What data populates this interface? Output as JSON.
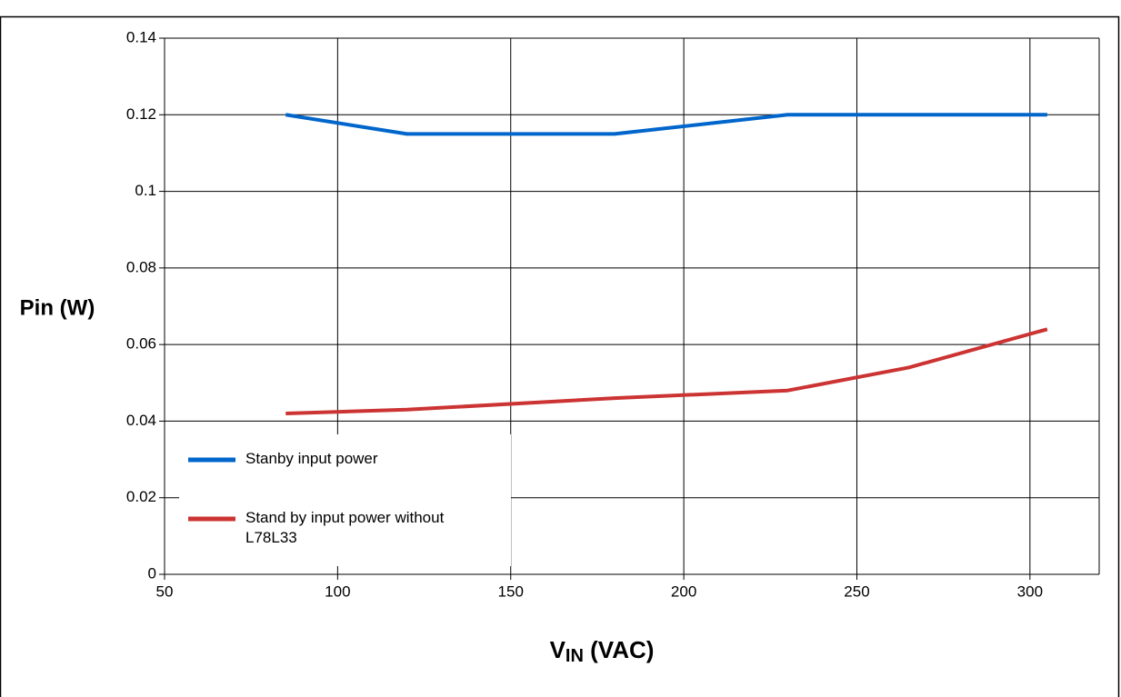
{
  "chart_data": {
    "type": "line",
    "x_label": {
      "main": "V",
      "sub": "IN",
      "rest": " (VAC)"
    },
    "y_label": "Pin (W)",
    "series": [
      {
        "name": "Stanby input power",
        "color": "#0066cc",
        "x": [
          85,
          120,
          180,
          230,
          265,
          305
        ],
        "values": [
          0.12,
          0.115,
          0.115,
          0.12,
          0.12,
          0.12
        ]
      },
      {
        "name": "Stand by input power without L78L33",
        "color": "#cc3333",
        "x": [
          85,
          120,
          180,
          230,
          265,
          305
        ],
        "values": [
          0.042,
          0.043,
          0.046,
          0.048,
          0.054,
          0.064
        ]
      }
    ],
    "xlim": [
      50,
      320
    ],
    "xticks": [
      50,
      100,
      150,
      200,
      250,
      300
    ],
    "ylim": [
      0,
      0.14
    ],
    "yticks": [
      0,
      0.02,
      0.04,
      0.06,
      0.08,
      0.1,
      0.12,
      0.14
    ],
    "grid": true,
    "legend": "lower left"
  }
}
